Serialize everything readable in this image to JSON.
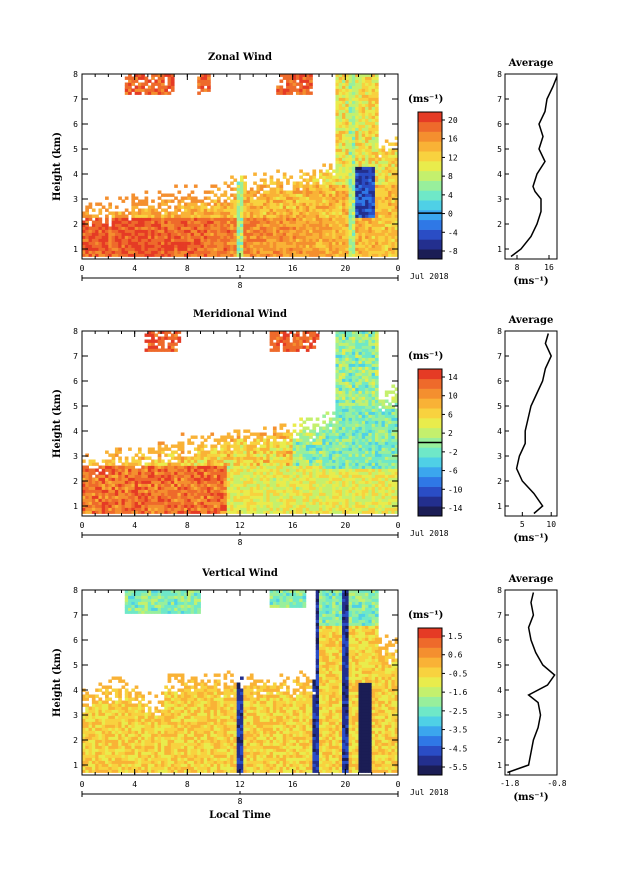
{
  "chart_data": [
    {
      "type": "heatmap",
      "title": "Zonal Wind",
      "ylabel": "Height (km)",
      "x_ticks": [
        "0",
        "4",
        "8",
        "12",
        "16",
        "20",
        "0"
      ],
      "y_ticks": [
        "1",
        "2",
        "3",
        "4",
        "5",
        "6",
        "7",
        "8"
      ],
      "ylim": [
        0.6,
        8
      ],
      "xlim": [
        0,
        24
      ],
      "date_tick": "8",
      "date_label": "Jul 2018",
      "colorbar": {
        "unit": "(ms⁻¹)",
        "ticks": [
          "20",
          "16",
          "12",
          "8",
          "4",
          "0",
          "-4",
          "-8"
        ],
        "range": [
          -10,
          22
        ]
      },
      "profile": {
        "title": "Average",
        "xlabel": "(ms⁻¹)",
        "x_ticks": [
          "8",
          "16"
        ],
        "xlim": [
          5,
          18
        ],
        "heights": [
          0.7,
          1.0,
          1.5,
          2.0,
          2.5,
          3.0,
          3.3,
          3.5,
          4.0,
          4.5,
          5.0,
          5.5,
          6.0,
          6.5,
          7.0,
          7.5,
          7.9
        ],
        "values": [
          6.5,
          9.0,
          11.5,
          13.0,
          14.0,
          14.0,
          12.5,
          12.0,
          13.0,
          15.0,
          13.5,
          14.5,
          13.5,
          15.0,
          15.5,
          17.0,
          18.0
        ]
      }
    },
    {
      "type": "heatmap",
      "title": "Meridional Wind",
      "ylabel": "Height (km)",
      "x_ticks": [
        "0",
        "4",
        "8",
        "12",
        "16",
        "20",
        "0"
      ],
      "y_ticks": [
        "1",
        "2",
        "3",
        "4",
        "5",
        "6",
        "7",
        "8"
      ],
      "ylim": [
        0.6,
        8
      ],
      "xlim": [
        0,
        24
      ],
      "date_tick": "8",
      "date_label": "Jul 2018",
      "colorbar": {
        "unit": "(ms⁻¹)",
        "ticks": [
          "14",
          "10",
          "6",
          "2",
          "-2",
          "-6",
          "-10",
          "-14"
        ],
        "range": [
          -16,
          16
        ]
      },
      "profile": {
        "title": "Average",
        "xlabel": "(ms⁻¹)",
        "x_ticks": [
          "5",
          "10"
        ],
        "xlim": [
          2,
          11
        ],
        "heights": [
          0.7,
          1.0,
          1.5,
          2.0,
          2.5,
          3.0,
          3.5,
          4.0,
          4.5,
          5.0,
          5.5,
          6.0,
          6.5,
          7.0,
          7.5,
          7.9
        ],
        "values": [
          7.0,
          8.5,
          7.0,
          5.0,
          4.0,
          4.5,
          5.5,
          5.5,
          6.0,
          6.5,
          7.5,
          8.5,
          9.0,
          10.0,
          9.0,
          9.5
        ]
      }
    },
    {
      "type": "heatmap",
      "title": "Vertical Wind",
      "xlabel": "Local Time",
      "ylabel": "Height (km)",
      "x_ticks": [
        "0",
        "4",
        "8",
        "12",
        "16",
        "20",
        "0"
      ],
      "y_ticks": [
        "1",
        "2",
        "3",
        "4",
        "5",
        "6",
        "7",
        "8"
      ],
      "ylim": [
        0.6,
        8
      ],
      "xlim": [
        0,
        24
      ],
      "date_tick": "8",
      "date_label": "Jul 2018",
      "colorbar": {
        "unit": "(ms⁻¹)",
        "ticks": [
          "1.5",
          "0.6",
          "-0.5",
          "-1.6",
          "-2.5",
          "-3.5",
          "-4.5",
          "-5.5"
        ],
        "range": [
          -6,
          2
        ]
      },
      "profile": {
        "title": "Average",
        "xlabel": "(ms⁻¹)",
        "x_ticks": [
          "-1.8",
          "-0.8"
        ],
        "xlim": [
          -1.9,
          -0.8
        ],
        "heights": [
          0.7,
          1.0,
          1.5,
          2.0,
          2.5,
          3.0,
          3.5,
          3.8,
          4.2,
          4.6,
          5.0,
          5.5,
          6.0,
          6.5,
          7.0,
          7.5,
          7.9
        ],
        "values": [
          -1.85,
          -1.4,
          -1.35,
          -1.3,
          -1.2,
          -1.15,
          -1.2,
          -1.4,
          -1.0,
          -0.85,
          -1.1,
          -1.25,
          -1.35,
          -1.4,
          -1.3,
          -1.35,
          -1.3
        ]
      }
    }
  ]
}
